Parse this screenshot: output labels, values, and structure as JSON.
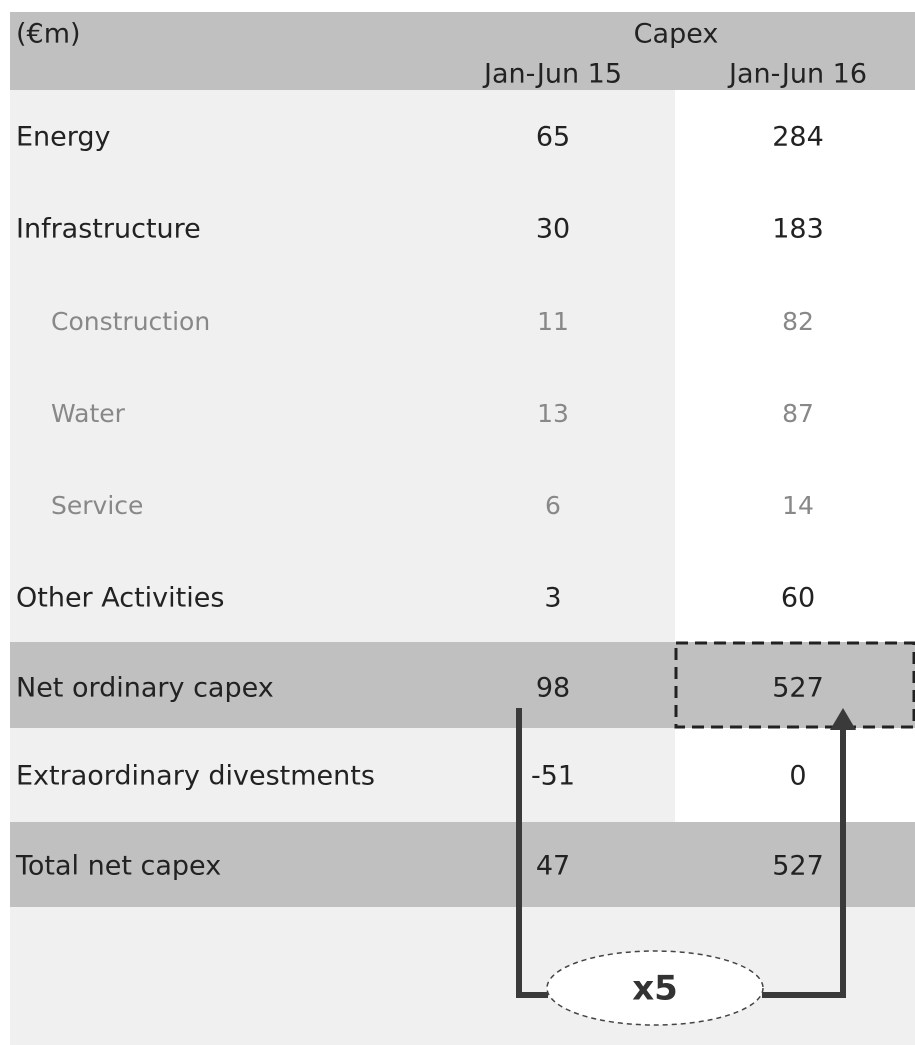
{
  "header": {
    "unit": "(€m)",
    "group": "Capex",
    "columns": [
      "Jan-Jun 15",
      "Jan-Jun 16"
    ]
  },
  "rows": [
    {
      "label": "Energy",
      "values": [
        65,
        284
      ]
    },
    {
      "label": "Infrastructure",
      "values": [
        30,
        183
      ]
    },
    {
      "label": "Construction",
      "values": [
        11,
        82
      ]
    },
    {
      "label": "Water",
      "values": [
        13,
        87
      ]
    },
    {
      "label": "Service",
      "values": [
        6,
        14
      ]
    },
    {
      "label": "Other Activities",
      "values": [
        3,
        60
      ]
    },
    {
      "label": "Net ordinary capex",
      "values": [
        98,
        527
      ]
    },
    {
      "label": "Extraordinary divestments",
      "values": [
        -51,
        0
      ]
    },
    {
      "label": "Total net capex",
      "values": [
        47,
        527
      ]
    }
  ],
  "annotation": "x5"
}
